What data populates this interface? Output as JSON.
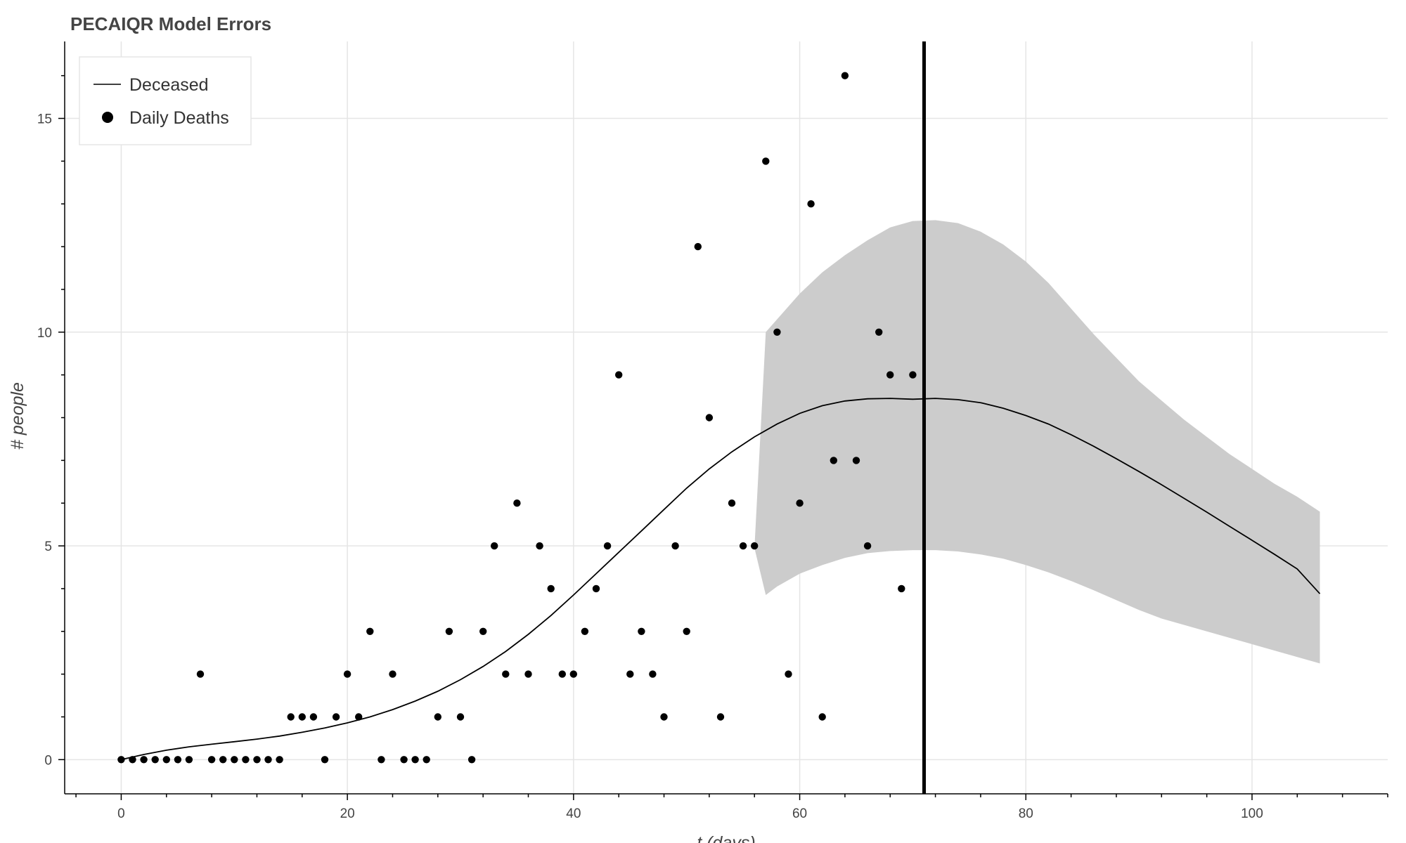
{
  "chart_data": {
    "type": "line",
    "title": "PECAIQR Model Errors",
    "xlabel": "t (days)",
    "ylabel": "# people",
    "xlim": [
      -5,
      112
    ],
    "ylim": [
      -0.8,
      16.8
    ],
    "xticks": [
      0,
      20,
      40,
      60,
      80,
      100
    ],
    "yticks": [
      0,
      5,
      10,
      15
    ],
    "xtick_labels": [
      "0",
      "20",
      "40",
      "60",
      "80",
      "100"
    ],
    "ytick_labels": [
      "0",
      "5",
      "10",
      "15"
    ],
    "grid": true,
    "legend_position": "top-left",
    "vertical_line_x": 71,
    "legend": [
      {
        "label": "Deceased",
        "kind": "line"
      },
      {
        "label": "Daily Deaths",
        "kind": "circle"
      }
    ],
    "series": [
      {
        "name": "Deceased",
        "kind": "line",
        "color": "#000000",
        "x": [
          0,
          2,
          4,
          6,
          8,
          10,
          12,
          14,
          16,
          18,
          20,
          22,
          24,
          26,
          28,
          30,
          32,
          34,
          36,
          38,
          40,
          42,
          44,
          46,
          48,
          50,
          52,
          54,
          56,
          58,
          60,
          62,
          64,
          66,
          68,
          70,
          72,
          74,
          76,
          78,
          80,
          82,
          84,
          86,
          88,
          90,
          92,
          94,
          96,
          98,
          100,
          102,
          104,
          106
        ],
        "y": [
          0,
          0.12,
          0.22,
          0.3,
          0.36,
          0.42,
          0.48,
          0.55,
          0.64,
          0.74,
          0.86,
          1.0,
          1.17,
          1.37,
          1.6,
          1.87,
          2.18,
          2.53,
          2.93,
          3.37,
          3.85,
          4.35,
          4.85,
          5.35,
          5.85,
          6.35,
          6.8,
          7.2,
          7.55,
          7.85,
          8.1,
          8.28,
          8.39,
          8.44,
          8.45,
          8.43,
          8.45,
          8.42,
          8.35,
          8.22,
          8.05,
          7.85,
          7.6,
          7.33,
          7.04,
          6.74,
          6.43,
          6.11,
          5.79,
          5.46,
          5.13,
          4.8,
          4.46,
          3.88
        ]
      },
      {
        "name": "Daily Deaths",
        "kind": "scatter",
        "color": "#000000",
        "x": [
          0,
          1,
          2,
          3,
          4,
          5,
          6,
          7,
          8,
          9,
          10,
          11,
          12,
          13,
          14,
          15,
          16,
          17,
          18,
          19,
          20,
          21,
          22,
          23,
          24,
          25,
          26,
          27,
          28,
          29,
          30,
          31,
          32,
          33,
          34,
          35,
          36,
          37,
          38,
          39,
          40,
          41,
          42,
          43,
          44,
          45,
          46,
          47,
          48,
          49,
          50,
          51,
          52,
          53,
          54,
          55,
          56,
          57,
          58,
          59,
          60,
          61,
          62,
          63,
          64,
          65,
          66,
          67,
          68,
          69,
          70
        ],
        "y": [
          0,
          0,
          0,
          0,
          0,
          0,
          0,
          2,
          0,
          0,
          0,
          0,
          0,
          0,
          0,
          1,
          1,
          1,
          0,
          1,
          2,
          1,
          3,
          0,
          2,
          0,
          0,
          0,
          1,
          3,
          1,
          0,
          3,
          5,
          2,
          6,
          2,
          5,
          4,
          2,
          2,
          3,
          4,
          5,
          9,
          2,
          3,
          2,
          1,
          5,
          3,
          12,
          8,
          1,
          6,
          5,
          5,
          14,
          10,
          2,
          6,
          13,
          1,
          7,
          16,
          7,
          5,
          10,
          9,
          4,
          9
        ]
      },
      {
        "name": "Uncertainty band",
        "kind": "area",
        "color": "#cccccc",
        "x": [
          56,
          57,
          58,
          60,
          62,
          64,
          66,
          68,
          70,
          72,
          74,
          76,
          78,
          80,
          82,
          84,
          86,
          88,
          90,
          92,
          94,
          96,
          98,
          100,
          102,
          104,
          106
        ],
        "upper": [
          4.95,
          10.0,
          10.3,
          10.9,
          11.4,
          11.8,
          12.15,
          12.45,
          12.6,
          12.62,
          12.55,
          12.35,
          12.05,
          11.65,
          11.15,
          10.55,
          9.95,
          9.4,
          8.85,
          8.4,
          7.95,
          7.55,
          7.15,
          6.8,
          6.45,
          6.15,
          5.8
        ],
        "lower": [
          4.95,
          3.85,
          4.05,
          4.35,
          4.55,
          4.72,
          4.83,
          4.88,
          4.9,
          4.9,
          4.87,
          4.8,
          4.7,
          4.55,
          4.38,
          4.18,
          3.96,
          3.73,
          3.5,
          3.3,
          3.15,
          3.0,
          2.85,
          2.7,
          2.55,
          2.4,
          2.25
        ]
      }
    ]
  }
}
